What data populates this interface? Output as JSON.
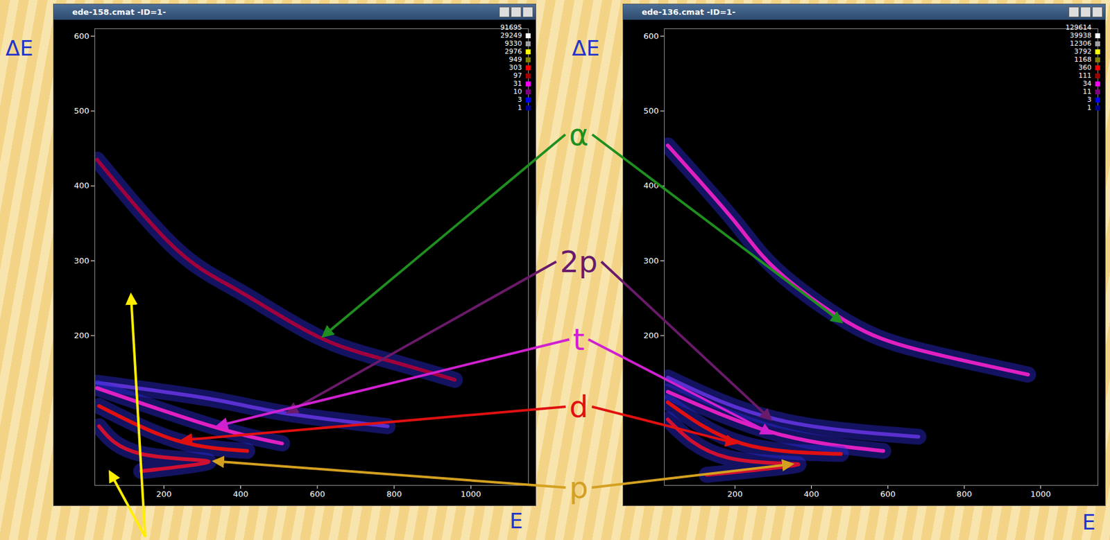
{
  "annotations": [
    {
      "text": "α",
      "color": "#1f8f1f"
    },
    {
      "text": "2p",
      "color": "#6a1a6a"
    },
    {
      "text": "t",
      "color": "#d020d0"
    },
    {
      "text": "d",
      "color": "#e01010"
    },
    {
      "text": "p",
      "color": "#d4a020"
    }
  ],
  "chart_data": [
    {
      "type": "line",
      "title": "ede-158.cmat -ID=1-",
      "x_label": "E",
      "y_label": "ΔE",
      "xlim": [
        20,
        1150
      ],
      "xticks": [
        200,
        400,
        600,
        800,
        1000
      ],
      "ylim": [
        0,
        610
      ],
      "yticks": [
        200,
        300,
        400,
        500,
        600
      ],
      "color_scale": {
        "levels": [
          91695,
          29249,
          9330,
          2976,
          949,
          303,
          97,
          31,
          10,
          3,
          1
        ],
        "colors": [
          "#ffffff",
          "#a0a0a0",
          "#ffff00",
          "#808000",
          "#ff0000",
          "#a00000",
          "#ff00ff",
          "#800080",
          "#0000ff",
          "#000090"
        ]
      },
      "series": [
        {
          "name": "α",
          "color": "#a0003c",
          "x": [
            26,
            233,
            398,
            600,
            783,
            958
          ],
          "values": [
            435,
            315,
            259,
            199,
            167,
            141
          ]
        },
        {
          "name": "2p",
          "color": "#5a30d0",
          "x": [
            26,
            316,
            508,
            783
          ],
          "values": [
            137,
            116,
            97,
            79
          ]
        },
        {
          "name": "t",
          "color": "#e020c0",
          "x": [
            26,
            325,
            508
          ],
          "values": [
            130,
            79,
            56
          ]
        },
        {
          "name": "d",
          "color": "#e01010",
          "x": [
            31,
            233,
            417
          ],
          "values": [
            106,
            60,
            46
          ]
        },
        {
          "name": "p",
          "color": "#d01030",
          "x": [
            31,
            141,
            316,
            141
          ],
          "values": [
            79,
            42,
            32,
            19
          ]
        }
      ]
    },
    {
      "type": "line",
      "title": "ede-136.cmat -ID=1-",
      "x_label": "E",
      "y_label": "ΔE",
      "xlim": [
        15,
        1150
      ],
      "xticks": [
        200,
        400,
        600,
        800,
        1000
      ],
      "ylim": [
        0,
        610
      ],
      "yticks": [
        200,
        300,
        400,
        500,
        600
      ],
      "color_scale": {
        "levels": [
          129614,
          39938,
          12306,
          3792,
          1168,
          360,
          111,
          34,
          11,
          3,
          1
        ],
        "colors": [
          "#ffffff",
          "#a0a0a0",
          "#ffff00",
          "#808000",
          "#ff0000",
          "#a00000",
          "#ff00ff",
          "#800080",
          "#0000ff",
          "#000090"
        ]
      },
      "series": [
        {
          "name": "α",
          "color": "#e020c0",
          "x": [
            24,
            200,
            310,
            495,
            680,
            967
          ],
          "values": [
            454,
            352,
            287,
            218,
            181,
            148
          ]
        },
        {
          "name": "2p",
          "color": "#5a30d0",
          "x": [
            24,
            310,
            680
          ],
          "values": [
            144,
            88,
            65
          ]
        },
        {
          "name": "t",
          "color": "#e020c0",
          "x": [
            24,
            310,
            588
          ],
          "values": [
            125,
            69,
            46
          ]
        },
        {
          "name": "d",
          "color": "#e01010",
          "x": [
            24,
            218,
            477
          ],
          "values": [
            111,
            56,
            42
          ]
        },
        {
          "name": "p",
          "color": "#d01030",
          "x": [
            24,
            181,
            366,
            126
          ],
          "values": [
            88,
            37,
            28,
            14
          ]
        }
      ]
    }
  ]
}
